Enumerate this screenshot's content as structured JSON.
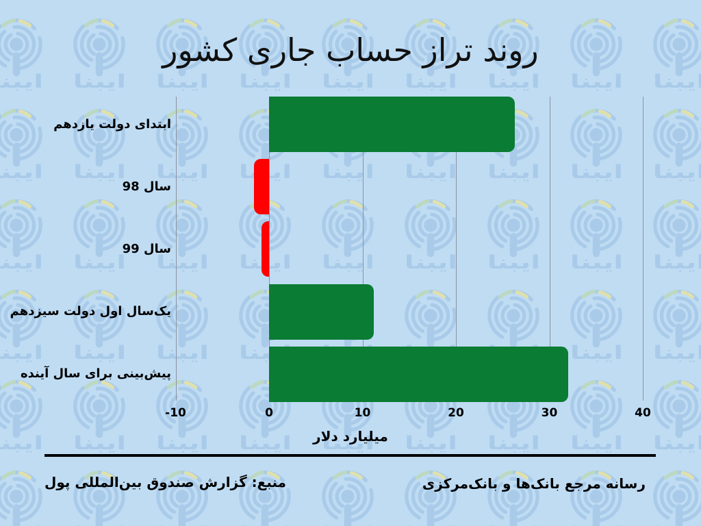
{
  "page": {
    "background_color": "#bfdcf3",
    "watermark_color": "#a9cbe9",
    "watermark_accent_green": "#bcd9c0",
    "watermark_accent_yellow": "#dfe0ad",
    "watermark_text": "ایبنا",
    "watermark_icon": "broadcast-rings-icon"
  },
  "title": "روند تراز حساب جاری کشور",
  "chart_data": {
    "type": "bar",
    "orientation": "horizontal",
    "title": "روند تراز حساب جاری کشور",
    "categories": [
      "ابتدای دولت یازدهم",
      "سال 98",
      "سال 99",
      "یک‌سال اول دولت سیزدهم",
      "پیش‌بینی برای سال آینده"
    ],
    "values": [
      26.3,
      -1.6,
      -0.8,
      11.2,
      32
    ],
    "bar_colors": [
      "#0a7c33",
      "#fe0000",
      "#fe0000",
      "#0a7c33",
      "#0a7c33"
    ],
    "positive_color": "#0a7c33",
    "negative_color": "#fe0000",
    "xlabel": "میلیارد دلار",
    "ylabel": "",
    "xticks": [
      -10,
      0,
      10,
      20,
      30,
      40
    ],
    "xlim": [
      -10,
      40
    ],
    "grid": true,
    "gridline_color": "#8b929e",
    "legend": "none"
  },
  "footer": {
    "source": "منبع: گزارش صندوق بین‌المللی پول",
    "brand": "رسانه مرجع بانک‌ها و بانک‌مرکزی"
  }
}
